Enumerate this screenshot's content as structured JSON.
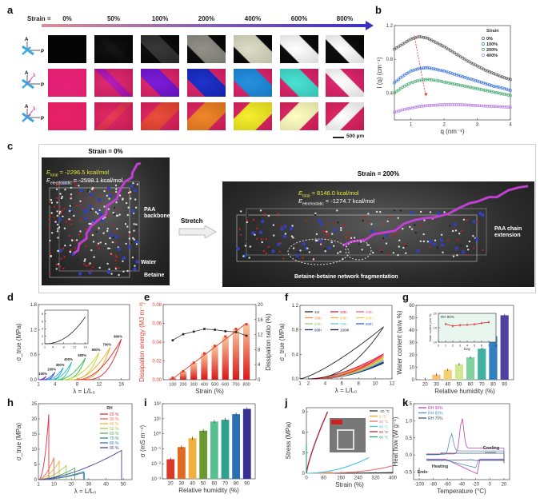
{
  "panel_labels": {
    "a": "a",
    "b": "b",
    "c": "c",
    "d": "d",
    "e": "e",
    "f": "f",
    "g": "g",
    "h": "h",
    "i": "i",
    "j": "j",
    "k": "k"
  },
  "panel_a": {
    "strain_prefix": "Strain =",
    "strains": [
      "0%",
      "50%",
      "100%",
      "200%",
      "400%",
      "600%",
      "800%"
    ],
    "arrow_colors": [
      "#d8909a",
      "#3b2fc4"
    ],
    "rows": [
      {
        "polarizer": "crossed A/P",
        "base_color": "#050505",
        "band_colors": [
          "#050505",
          "#0a0a0a",
          "#2e2e2e",
          "#8c8c84",
          "#dcdcc4",
          "#ffffff",
          "#ffffff"
        ]
      },
      {
        "polarizer": "A/P with λ plate",
        "base_color": "#e0206a",
        "band_colors": [
          "#e4207a",
          "#b012b4",
          "#7412d8",
          "#1428c8",
          "#1a8ce0",
          "#40e0d0",
          "#ffffff"
        ]
      },
      {
        "polarizer": "A/P with λ plate rotated",
        "base_color": "#e01f5e",
        "band_colors": [
          "#e6206a",
          "#e83050",
          "#ec4432",
          "#f08020",
          "#f6ee22",
          "#ffffc0",
          "#ffffff"
        ]
      }
    ],
    "axis_letters": {
      "analyzer": "A",
      "polarizer": "P",
      "lambda": "λ"
    },
    "scale_bar": "500 µm"
  },
  "chart_data": [
    {
      "panel": "b",
      "type": "scatter",
      "xlabel": "q (nm⁻¹)",
      "ylabel": "I (q) (cm⁻¹)",
      "xlim": [
        0.5,
        4
      ],
      "ylim": [
        0.08,
        1.2
      ],
      "xticks": [
        "1",
        "2",
        "3",
        "4"
      ],
      "xtick_values": [
        1,
        2,
        3,
        4
      ],
      "yticks": [
        "0.4",
        "0.8",
        "1.2"
      ],
      "ytick_values": [
        0.4,
        0.8,
        1.2
      ],
      "legend_title": "Strain",
      "legend_position": "top-right",
      "x": [
        0.5,
        0.75,
        1.0,
        1.25,
        1.5,
        1.75,
        2.0,
        2.25,
        2.5,
        2.75,
        3.0,
        3.25,
        3.5,
        3.75,
        4.0
      ],
      "series": [
        {
          "name": "0%",
          "color": "#505050",
          "values": [
            0.92,
            0.98,
            1.04,
            1.07,
            1.05,
            1.0,
            0.95,
            0.89,
            0.83,
            0.77,
            0.72,
            0.67,
            0.63,
            0.59,
            0.56
          ]
        },
        {
          "name": "100%",
          "color": "#2f6fd6",
          "values": [
            0.52,
            0.6,
            0.66,
            0.69,
            0.7,
            0.68,
            0.66,
            0.63,
            0.6,
            0.57,
            0.54,
            0.51,
            0.48,
            0.46,
            0.43
          ]
        },
        {
          "name": "200%",
          "color": "#3aa66a",
          "values": [
            0.4,
            0.47,
            0.52,
            0.55,
            0.56,
            0.55,
            0.53,
            0.51,
            0.49,
            0.47,
            0.45,
            0.43,
            0.41,
            0.39,
            0.37
          ]
        },
        {
          "name": "400%",
          "color": "#b57be0",
          "values": [
            0.17,
            0.2,
            0.22,
            0.24,
            0.25,
            0.255,
            0.26,
            0.26,
            0.26,
            0.255,
            0.25,
            0.245,
            0.24,
            0.235,
            0.23
          ]
        }
      ],
      "arrow": {
        "from": [
          1.1,
          1.08
        ],
        "to": [
          1.45,
          0.36
        ],
        "color": "#e03030"
      }
    },
    {
      "panel": "d",
      "type": "line",
      "xlabel": "λ = L/L₀",
      "ylabel": "σ_true (MPa)",
      "xlim": [
        1,
        17.5
      ],
      "ylim": [
        0,
        1.8
      ],
      "xticks": [
        "1",
        "4",
        "8",
        "12",
        "16"
      ],
      "xtick_values": [
        1,
        4,
        8,
        12,
        16
      ],
      "yticks": [
        "0.0",
        "0.6",
        "1.2",
        "1.8"
      ],
      "ytick_values": [
        0,
        0.6,
        1.2,
        1.8
      ],
      "series": [
        {
          "name": "100%",
          "color": "#6a2fc0",
          "start": 1,
          "end": 2.4,
          "peak": 0.08
        },
        {
          "name": "200%",
          "color": "#3050d0",
          "start": 1.8,
          "end": 4,
          "peak": 0.18
        },
        {
          "name": "300%",
          "color": "#2aa0e0",
          "start": 2.6,
          "end": 5.5,
          "peak": 0.29
        },
        {
          "name": "400%",
          "color": "#20c0b0",
          "start": 3.5,
          "end": 7,
          "peak": 0.42
        },
        {
          "name": "500%",
          "color": "#30c040",
          "start": 4.5,
          "end": 9.5,
          "peak": 0.52
        },
        {
          "name": "600%",
          "color": "#c8d820",
          "start": 5.5,
          "end": 12,
          "peak": 0.65
        },
        {
          "name": "700%",
          "color": "#f0a020",
          "start": 7,
          "end": 14,
          "peak": 0.78
        },
        {
          "name": "800%",
          "color": "#e02020",
          "start": 8,
          "end": 16,
          "peak": 0.97
        }
      ],
      "inset": {
        "xlim": [
          1,
          17
        ],
        "ylim": [
          0,
          9
        ],
        "xticks": [
          "1",
          "4",
          "8",
          "12",
          "16"
        ],
        "xtick_values": [
          1,
          4,
          8,
          12,
          16
        ],
        "yticks": [
          "0",
          "2",
          "4",
          "6",
          "8"
        ],
        "ytick_values": [
          0,
          2,
          4,
          6,
          8
        ],
        "curve": {
          "start": 1,
          "end": 16,
          "peak": 7.2,
          "color": "#222222"
        }
      }
    },
    {
      "panel": "e",
      "type": "bar",
      "xlabel": "Strain (%)",
      "ylabel": "Dissipation energy (MJ m⁻³)",
      "ylabel_right": "Dissipation ratio (%)",
      "categories": [
        "100",
        "200",
        "300",
        "400",
        "500",
        "600",
        "700",
        "800"
      ],
      "ylim": [
        0,
        0.08
      ],
      "ylim_right": [
        0,
        20
      ],
      "yticks": [
        "0.00",
        "0.02",
        "0.04",
        "0.06",
        "0.08"
      ],
      "ytick_values": [
        0,
        0.02,
        0.04,
        0.06,
        0.08
      ],
      "yticks_right": [
        "0",
        "4",
        "8",
        "12",
        "16",
        "20"
      ],
      "ytick_values_right": [
        0,
        4,
        8,
        12,
        16,
        20
      ],
      "series": [
        {
          "name": "Dissipation energy",
          "color": "#e03a2a",
          "values": [
            0.002,
            0.009,
            0.018,
            0.028,
            0.036,
            0.046,
            0.054,
            0.059
          ]
        },
        {
          "name": "Dissipation ratio",
          "color": "#222222",
          "values": [
            10.5,
            12.1,
            12.8,
            13.5,
            13.3,
            12.9,
            12.7,
            11.7
          ]
        }
      ],
      "axis_color_left": "#e03a2a"
    },
    {
      "panel": "f",
      "type": "line",
      "xlabel": "λ = L/L₀",
      "ylabel": "σ_true (MPa)",
      "xlim": [
        1,
        12
      ],
      "ylim": [
        0,
        1.2
      ],
      "xticks": [
        "1",
        "2",
        "4",
        "6",
        "8",
        "10",
        "12"
      ],
      "xtick_values": [
        1,
        2,
        4,
        6,
        8,
        10,
        12
      ],
      "yticks": [
        "0.0",
        "0.4",
        "0.8",
        "1.2"
      ],
      "ytick_values": [
        0,
        0.4,
        0.8,
        1.2
      ],
      "legend_position": "top-left",
      "series": [
        {
          "name": "1st",
          "color": "#222222",
          "end_stress": 0.85
        },
        {
          "name": "10th",
          "color": "#d81e3a",
          "end_stress": 0.41
        },
        {
          "name": "20th",
          "color": "#e8608a",
          "end_stress": 0.39
        },
        {
          "name": "30th",
          "color": "#f08a40",
          "end_stress": 0.37
        },
        {
          "name": "40th",
          "color": "#f0b040",
          "end_stress": 0.35
        },
        {
          "name": "50th",
          "color": "#e8c84a",
          "end_stress": 0.33
        },
        {
          "name": "60th",
          "color": "#90d080",
          "end_stress": 0.31
        },
        {
          "name": "70th",
          "color": "#70c0e0",
          "end_stress": 0.3
        },
        {
          "name": "80th",
          "color": "#3060c0",
          "end_stress": 0.28
        },
        {
          "name": "90th",
          "color": "#1a2a70",
          "end_stress": 0.27
        },
        {
          "name": "100th",
          "color": "#101830",
          "end_stress": 0.26
        }
      ]
    },
    {
      "panel": "g",
      "type": "bar",
      "xlabel": "Relative humidity (%)",
      "ylabel": "Water content  (w/w %)",
      "categories": [
        "20",
        "30",
        "40",
        "50",
        "60",
        "70",
        "80",
        "90"
      ],
      "ylim": [
        0,
        60
      ],
      "yticks": [
        "0",
        "10",
        "20",
        "30",
        "40",
        "50",
        "60"
      ],
      "ytick_values": [
        0,
        10,
        20,
        30,
        40,
        50,
        60
      ],
      "values": [
        0.5,
        4,
        8,
        12.5,
        18,
        25,
        35,
        52
      ],
      "colors": [
        "#f5b8a0",
        "#f5c070",
        "#f5d070",
        "#d0e890",
        "#80d0a0",
        "#40b0a0",
        "#3080c0",
        "#5040a0"
      ],
      "inset": {
        "type": "line",
        "label": "RH 90%",
        "xlabel": "Day",
        "ylabel": "Water content (w/w %)",
        "xlim": [
          0,
          8
        ],
        "ylim": [
          10,
          20
        ],
        "xticks": [
          "0",
          "1",
          "2",
          "3",
          "4",
          "5",
          "6",
          "7",
          "8"
        ],
        "xtick_values": [
          0,
          1,
          2,
          3,
          4,
          5,
          6,
          7,
          8
        ],
        "yticks": [
          "10",
          "15",
          "20"
        ],
        "ytick_values": [
          10,
          15,
          20
        ],
        "x": [
          1,
          2,
          3,
          4,
          5,
          6,
          7
        ],
        "values": [
          16.3,
          15.6,
          15.9,
          16.0,
          16.2,
          16.6,
          16.9
        ],
        "color": "#e03030"
      }
    },
    {
      "panel": "h",
      "type": "line",
      "xlabel": "λ = L/L₀",
      "ylabel": "σ_true (MPa)",
      "xlim": [
        1,
        55
      ],
      "ylim": [
        0,
        25
      ],
      "xticks": [
        "1",
        "10",
        "20",
        "30",
        "40",
        "50"
      ],
      "xtick_values": [
        1,
        10,
        20,
        30,
        40,
        50
      ],
      "yticks": [
        "0",
        "5",
        "10",
        "15",
        "20",
        "25"
      ],
      "ytick_values": [
        0,
        5,
        10,
        15,
        20,
        25
      ],
      "legend_title": "RH",
      "legend_position": "top-right",
      "series": [
        {
          "name": "20 %",
          "color": "#d8304a",
          "break_lambda": 7,
          "break_stress": 21.5
        },
        {
          "name": "30 %",
          "color": "#f06a50",
          "break_lambda": 10,
          "break_stress": 7.2
        },
        {
          "name": "40 %",
          "color": "#f0b040",
          "break_lambda": 13,
          "break_stress": 6
        },
        {
          "name": "50 %",
          "color": "#a0c840",
          "break_lambda": 17,
          "break_stress": 4.6
        },
        {
          "name": "60 %",
          "color": "#50b060",
          "break_lambda": 22,
          "break_stress": 3.8
        },
        {
          "name": "70 %",
          "color": "#308a80",
          "break_lambda": 27,
          "break_stress": 2.6
        },
        {
          "name": "80 %",
          "color": "#4070c0",
          "break_lambda": 27.5,
          "break_stress": 2.3
        },
        {
          "name": "90 %",
          "color": "#40409a",
          "break_lambda": 49,
          "break_stress": 9.6
        }
      ]
    },
    {
      "panel": "i",
      "type": "bar",
      "yscale": "log",
      "xlabel": "Relative humidity (%)",
      "ylabel": "σ (mS m⁻¹)",
      "categories": [
        "20",
        "30",
        "40",
        "50",
        "60",
        "70",
        "80",
        "90"
      ],
      "ylim": [
        0.001,
        100
      ],
      "yticks": [
        "10⁻³",
        "10⁻²",
        "10⁻¹",
        "10⁰",
        "10¹",
        "10²"
      ],
      "ytick_values": [
        0.001,
        0.01,
        0.1,
        1,
        10,
        100
      ],
      "values": [
        0.02,
        0.13,
        0.5,
        1.6,
        6.5,
        8.5,
        20,
        45
      ],
      "colors": [
        "#d83a2a",
        "#e06a20",
        "#f0b040",
        "#6a9a30",
        "#58c090",
        "#30a090",
        "#2870b0",
        "#3a3090"
      ]
    },
    {
      "panel": "j",
      "type": "line",
      "xlabel": "Strain (%)",
      "ylabel": "Stress (MPa)",
      "xlim": [
        0,
        400
      ],
      "ylim": [
        0,
        9.6
      ],
      "xticks": [
        "0",
        "80",
        "160",
        "240",
        "320",
        "400"
      ],
      "xtick_values": [
        0,
        80,
        160,
        240,
        320,
        400
      ],
      "yticks": [
        "0",
        "3",
        "6",
        "9"
      ],
      "ytick_values": [
        0,
        3,
        6,
        9
      ],
      "legend_position": "top-right",
      "series": [
        {
          "name": "-20 °C",
          "color": "#333333",
          "break_strain": 400,
          "break_stress": 0.1
        },
        {
          "name": "0 °C",
          "color": "#f0a030",
          "break_strain": 120,
          "break_stress": 0.15
        },
        {
          "name": "20 °C",
          "color": "#e87070",
          "break_strain": 400,
          "break_stress": 1.1
        },
        {
          "name": "40 °C",
          "color": "#40c8e0",
          "break_strain": 290,
          "break_stress": 2.3
        },
        {
          "name": "60 °C",
          "color": "#b02a3a",
          "break_strain": 98,
          "break_stress": 9
        },
        {
          "name": "80 °C",
          "color": "#2a9a70",
          "break_strain": 0,
          "break_stress": 4.3
        }
      ],
      "inset_readout_color": "#d02020"
    },
    {
      "panel": "k",
      "type": "line",
      "xlabel": "Temperature (°C)",
      "ylabel": "Heat flow (W g⁻¹)",
      "xlim": [
        -108,
        28
      ],
      "ylim": [
        -0.72,
        1.5
      ],
      "xticks": [
        "-100",
        "-80",
        "-60",
        "-40",
        "-20",
        "0",
        "20"
      ],
      "xtick_values": [
        -100,
        -80,
        -60,
        -40,
        -20,
        0,
        20
      ],
      "yticks": [
        "-0.5",
        "0.0",
        "0.5",
        "1.0",
        "1.5"
      ],
      "ytick_values": [
        -0.5,
        0,
        0.5,
        1.0,
        1.5
      ],
      "legend_position": "top-left",
      "annotations": {
        "cooling": "Cooling",
        "heating": "Heating",
        "endo": "Endo"
      },
      "series": [
        {
          "name": "RH 90%",
          "color": "#c040b0",
          "cooling_peak_T": -40,
          "cooling_peak": 1.12,
          "heating_valley_T": -18,
          "heating_valley": -0.55,
          "baseline": 0.2
        },
        {
          "name": "RH 80%",
          "color": "#5090c8",
          "cooling_peak_T": -55,
          "cooling_peak": 0.65,
          "heating_valley_T": -20,
          "heating_valley": -0.35,
          "baseline": 0.12
        },
        {
          "name": "RH 70%",
          "color": "#405a70",
          "cooling_peak_T": -70,
          "cooling_peak": 0.06,
          "heating_valley_T": -25,
          "heating_valley": -0.1,
          "baseline": 0.05
        }
      ]
    }
  ],
  "panel_c": {
    "left_title": "Strain = 0%",
    "right_title": "Strain = 200%",
    "left_energy": {
      "total_label": "E",
      "total_sub": "total",
      "total_value": "= -2296.5 kcal/mol",
      "elec_label": "E",
      "elec_sub": "electrostatic",
      "elec_value": "= -2598.1 kcal/mol"
    },
    "right_energy": {
      "total_label": "E",
      "total_sub": "total",
      "total_value": "= 8146.0 kcal/mol",
      "elec_label": "E",
      "elec_sub": "electrostatic",
      "elec_value": "= -1274.7 kcal/mol"
    },
    "labels": {
      "paa_backbone": "PAA backbone",
      "water": "Water",
      "betaine": "Betaine",
      "stretch": "Stretch",
      "paa_extension": "PAA chain extension",
      "fragmentation": "Betaine-betaine network fragmentation"
    }
  }
}
